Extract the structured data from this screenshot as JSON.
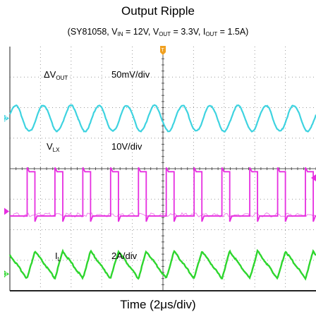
{
  "chart_data": {
    "type": "line",
    "title": "Output Ripple",
    "subtitle": {
      "parts": [
        "(SY81058, V",
        "IN",
        " = 12V, V",
        "OUT",
        " = 3.3V, I",
        "OUT",
        " = 1.5A)"
      ]
    },
    "xlabel": "Time (2μs/div)",
    "x_divisions": 10,
    "y_divisions": 8,
    "grid": true,
    "series": [
      {
        "label_main": "ΔV",
        "label_sub": "OUT",
        "scale": "50mV/div",
        "color": "#3ed3e0",
        "shape": "sine",
        "periods": 11,
        "center_div": 2.35,
        "amplitude_div": 0.42
      },
      {
        "label_main": "V",
        "label_sub": "LX",
        "scale": "10V/div",
        "color": "#e62ee0",
        "shape": "pulse",
        "periods": 11,
        "high_div": 4.1,
        "low_div": 5.55,
        "duty": 0.28
      },
      {
        "label_main": "I",
        "label_sub": "L",
        "scale": "2A/div",
        "color": "#2ed62e",
        "shape": "triangle",
        "periods": 11,
        "center_div": 7.15,
        "amplitude_div": 0.45,
        "rise_fraction": 0.28
      }
    ],
    "channel_markers": [
      "2",
      "",
      "3"
    ],
    "trigger_marker": "T"
  }
}
